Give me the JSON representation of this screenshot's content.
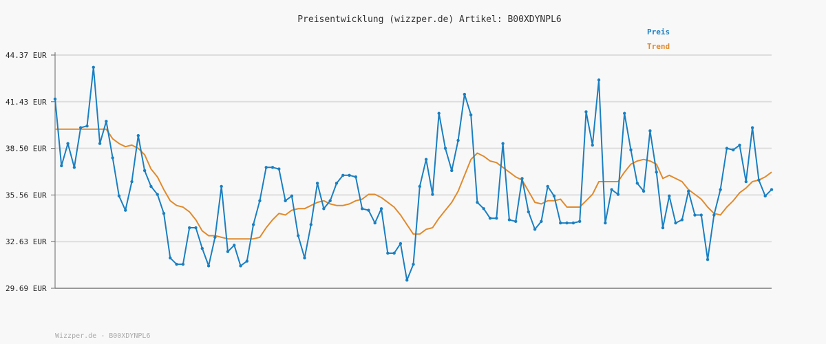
{
  "chart_data": {
    "type": "line",
    "title": "Preisentwicklung (wizzper.de) Artikel: B00XDYNPL6",
    "footer": "Wizzper.de - B00XDYNPL6",
    "xlabel": "",
    "ylabel": "",
    "ylim": [
      29.69,
      44.37
    ],
    "yticks": [
      "44.37 EUR",
      "41.43 EUR",
      "38.50 EUR",
      "35.56 EUR",
      "32.63 EUR",
      "29.69 EUR"
    ],
    "grid": true,
    "legend_position": "top-right",
    "colors": {
      "preis": "#1a7fc1",
      "trend": "#e08a2c"
    },
    "series": [
      {
        "name": "Preis",
        "values": [
          41.6,
          37.4,
          38.8,
          37.3,
          39.8,
          39.9,
          43.6,
          38.8,
          40.2,
          37.9,
          35.5,
          34.6,
          36.4,
          39.3,
          37.1,
          36.1,
          35.6,
          34.4,
          31.6,
          31.2,
          31.2,
          33.5,
          33.5,
          32.2,
          31.1,
          32.9,
          36.1,
          32.0,
          32.4,
          31.1,
          31.4,
          33.7,
          35.2,
          37.3,
          37.3,
          37.2,
          35.2,
          35.5,
          33.0,
          31.6,
          33.7,
          36.3,
          34.7,
          35.2,
          36.3,
          36.8,
          36.8,
          36.7,
          34.7,
          34.6,
          33.8,
          34.7,
          31.9,
          31.9,
          32.5,
          30.2,
          31.2,
          36.1,
          37.8,
          35.6,
          40.7,
          38.5,
          37.1,
          39.0,
          41.9,
          40.6,
          35.1,
          34.7,
          34.1,
          34.1,
          38.8,
          34.0,
          33.9,
          36.6,
          34.5,
          33.4,
          33.9,
          36.1,
          35.5,
          33.8,
          33.8,
          33.8,
          33.9,
          40.8,
          38.7,
          42.8,
          33.8,
          35.9,
          35.6,
          40.7,
          38.4,
          36.3,
          35.8,
          39.6,
          37.0,
          33.5,
          35.5,
          33.8,
          34.0,
          35.8,
          34.3,
          34.3,
          31.5,
          34.3,
          35.9,
          38.5,
          38.4,
          38.7,
          36.4,
          39.8,
          36.5,
          35.5,
          35.9
        ]
      },
      {
        "name": "Trend",
        "values": [
          39.7,
          39.7,
          39.7,
          39.7,
          39.7,
          39.7,
          39.7,
          39.7,
          39.7,
          39.1,
          38.8,
          38.6,
          38.7,
          38.5,
          38.1,
          37.2,
          36.7,
          35.9,
          35.2,
          34.9,
          34.8,
          34.5,
          34.0,
          33.3,
          33.0,
          33.0,
          32.9,
          32.8,
          32.8,
          32.8,
          32.8,
          32.8,
          32.9,
          33.5,
          34.0,
          34.4,
          34.3,
          34.6,
          34.7,
          34.7,
          34.9,
          35.1,
          35.2,
          35.0,
          34.9,
          34.9,
          35.0,
          35.2,
          35.3,
          35.6,
          35.6,
          35.4,
          35.1,
          34.8,
          34.3,
          33.7,
          33.1,
          33.1,
          33.4,
          33.5,
          34.1,
          34.6,
          35.1,
          35.8,
          36.8,
          37.8,
          38.2,
          38.0,
          37.7,
          37.6,
          37.3,
          37.0,
          36.7,
          36.5,
          35.8,
          35.1,
          35.0,
          35.2,
          35.2,
          35.3,
          34.8,
          34.8,
          34.8,
          35.2,
          35.6,
          36.4,
          36.4,
          36.4,
          36.4,
          37.0,
          37.5,
          37.7,
          37.8,
          37.7,
          37.5,
          36.6,
          36.8,
          36.6,
          36.4,
          35.9,
          35.6,
          35.3,
          34.8,
          34.4,
          34.3,
          34.8,
          35.2,
          35.7,
          36.0,
          36.4,
          36.5,
          36.7,
          37.0
        ]
      }
    ]
  }
}
